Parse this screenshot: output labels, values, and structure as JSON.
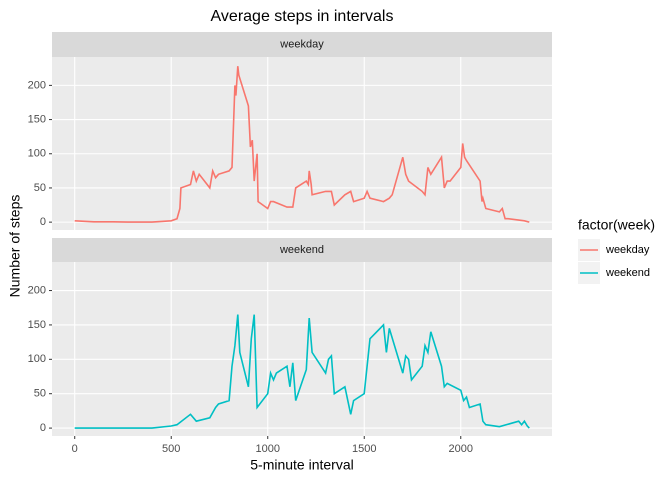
{
  "chart_data": {
    "type": "line",
    "title": "Average steps in intervals",
    "x_label": "5-minute interval",
    "y_label": "Number of steps",
    "legend_title": "factor(week)",
    "xlim": [
      -117.75,
      2472.75
    ],
    "xticks": [
      0,
      500,
      1000,
      1500,
      2000
    ],
    "ylim": [
      -11.5,
      241.5
    ],
    "yticks": [
      0,
      50,
      100,
      150,
      200
    ],
    "grid": true,
    "legend": "right",
    "series": [
      {
        "name": "weekday",
        "color": "#f8766d",
        "x": [
          0,
          100,
          200,
          300,
          400,
          500,
          530,
          545,
          550,
          600,
          615,
          630,
          645,
          700,
          715,
          730,
          745,
          800,
          815,
          830,
          835,
          845,
          850,
          900,
          910,
          920,
          930,
          945,
          950,
          1000,
          1015,
          1030,
          1100,
          1115,
          1130,
          1145,
          1200,
          1210,
          1215,
          1225,
          1230,
          1300,
          1330,
          1345,
          1400,
          1430,
          1445,
          1500,
          1515,
          1530,
          1600,
          1630,
          1645,
          1700,
          1715,
          1730,
          1800,
          1815,
          1830,
          1845,
          1900,
          1915,
          1930,
          1945,
          2000,
          2010,
          2020,
          2030,
          2100,
          2110,
          2115,
          2130,
          2200,
          2215,
          2230,
          2245,
          2300,
          2330,
          2355
        ],
        "values": [
          2,
          0.5,
          0.5,
          0,
          0,
          2,
          5,
          20,
          50,
          55,
          75,
          60,
          70,
          50,
          75,
          65,
          70,
          75,
          80,
          200,
          185,
          228,
          215,
          170,
          110,
          120,
          60,
          100,
          30,
          20,
          30,
          30,
          22,
          22,
          22,
          50,
          60,
          55,
          75,
          55,
          40,
          45,
          45,
          25,
          40,
          45,
          30,
          35,
          45,
          35,
          30,
          35,
          40,
          95,
          70,
          60,
          45,
          40,
          80,
          70,
          95,
          50,
          60,
          60,
          80,
          115,
          95,
          90,
          60,
          30,
          35,
          20,
          15,
          20,
          5,
          5,
          3,
          2,
          0
        ]
      },
      {
        "name": "weekend",
        "color": "#00bfc4",
        "x": [
          0,
          400,
          500,
          530,
          600,
          630,
          700,
          730,
          745,
          800,
          815,
          830,
          845,
          855,
          900,
          915,
          930,
          945,
          1000,
          1015,
          1030,
          1045,
          1100,
          1115,
          1130,
          1145,
          1200,
          1215,
          1230,
          1300,
          1315,
          1330,
          1345,
          1400,
          1415,
          1430,
          1445,
          1500,
          1530,
          1600,
          1615,
          1630,
          1700,
          1715,
          1730,
          1745,
          1800,
          1815,
          1830,
          1845,
          1900,
          1915,
          1930,
          2000,
          2015,
          2030,
          2045,
          2100,
          2115,
          2130,
          2200,
          2300,
          2315,
          2330,
          2345,
          2355
        ],
        "values": [
          0,
          0,
          3,
          5,
          20,
          10,
          15,
          30,
          35,
          40,
          90,
          120,
          165,
          110,
          60,
          130,
          165,
          30,
          50,
          80,
          70,
          80,
          90,
          60,
          95,
          40,
          85,
          160,
          110,
          80,
          100,
          105,
          50,
          60,
          40,
          20,
          40,
          50,
          130,
          150,
          110,
          145,
          80,
          105,
          100,
          70,
          90,
          120,
          110,
          140,
          90,
          60,
          65,
          55,
          40,
          45,
          30,
          35,
          10,
          5,
          2,
          10,
          5,
          10,
          3,
          0
        ]
      }
    ]
  }
}
